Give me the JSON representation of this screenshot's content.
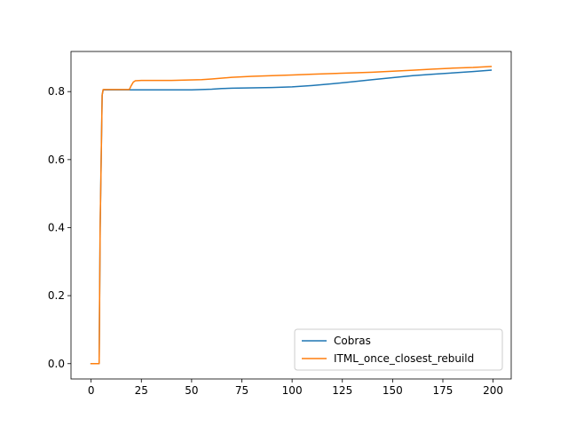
{
  "chart_data": {
    "type": "line",
    "title": "",
    "xlabel": "",
    "ylabel": "",
    "xlim": [
      -10,
      209
    ],
    "ylim": [
      -0.045,
      0.918
    ],
    "xticks": [
      0,
      25,
      50,
      75,
      100,
      125,
      150,
      175,
      200
    ],
    "yticks": [
      0.0,
      0.2,
      0.4,
      0.6,
      0.8
    ],
    "ytick_labels": [
      "0.0",
      "0.2",
      "0.4",
      "0.6",
      "0.8"
    ],
    "grid": false,
    "legend_position": "lower-right",
    "series": [
      {
        "name": "Cobras",
        "color": "#1f77b4",
        "x": [
          0,
          4,
          4.5,
          5.5,
          6,
          10,
          20,
          30,
          40,
          50,
          55,
          60,
          65,
          70,
          80,
          90,
          100,
          110,
          120,
          130,
          140,
          150,
          160,
          170,
          180,
          190,
          199
        ],
        "y": [
          0.0,
          0.0,
          0.4,
          0.79,
          0.805,
          0.805,
          0.805,
          0.805,
          0.805,
          0.805,
          0.806,
          0.807,
          0.809,
          0.81,
          0.811,
          0.812,
          0.814,
          0.818,
          0.823,
          0.829,
          0.835,
          0.841,
          0.847,
          0.851,
          0.855,
          0.859,
          0.863
        ]
      },
      {
        "name": "ITML_once_closest_rebuild",
        "color": "#ff7f0e",
        "x": [
          0,
          4,
          4.5,
          5.5,
          6,
          10,
          19,
          20,
          21,
          22,
          25,
          40,
          55,
          60,
          70,
          80,
          90,
          100,
          110,
          120,
          130,
          140,
          150,
          160,
          170,
          180,
          190,
          199
        ],
        "y": [
          0.0,
          0.0,
          0.4,
          0.79,
          0.806,
          0.806,
          0.806,
          0.818,
          0.828,
          0.832,
          0.833,
          0.833,
          0.835,
          0.837,
          0.842,
          0.845,
          0.847,
          0.849,
          0.851,
          0.853,
          0.855,
          0.857,
          0.86,
          0.863,
          0.866,
          0.869,
          0.871,
          0.874
        ]
      }
    ]
  }
}
